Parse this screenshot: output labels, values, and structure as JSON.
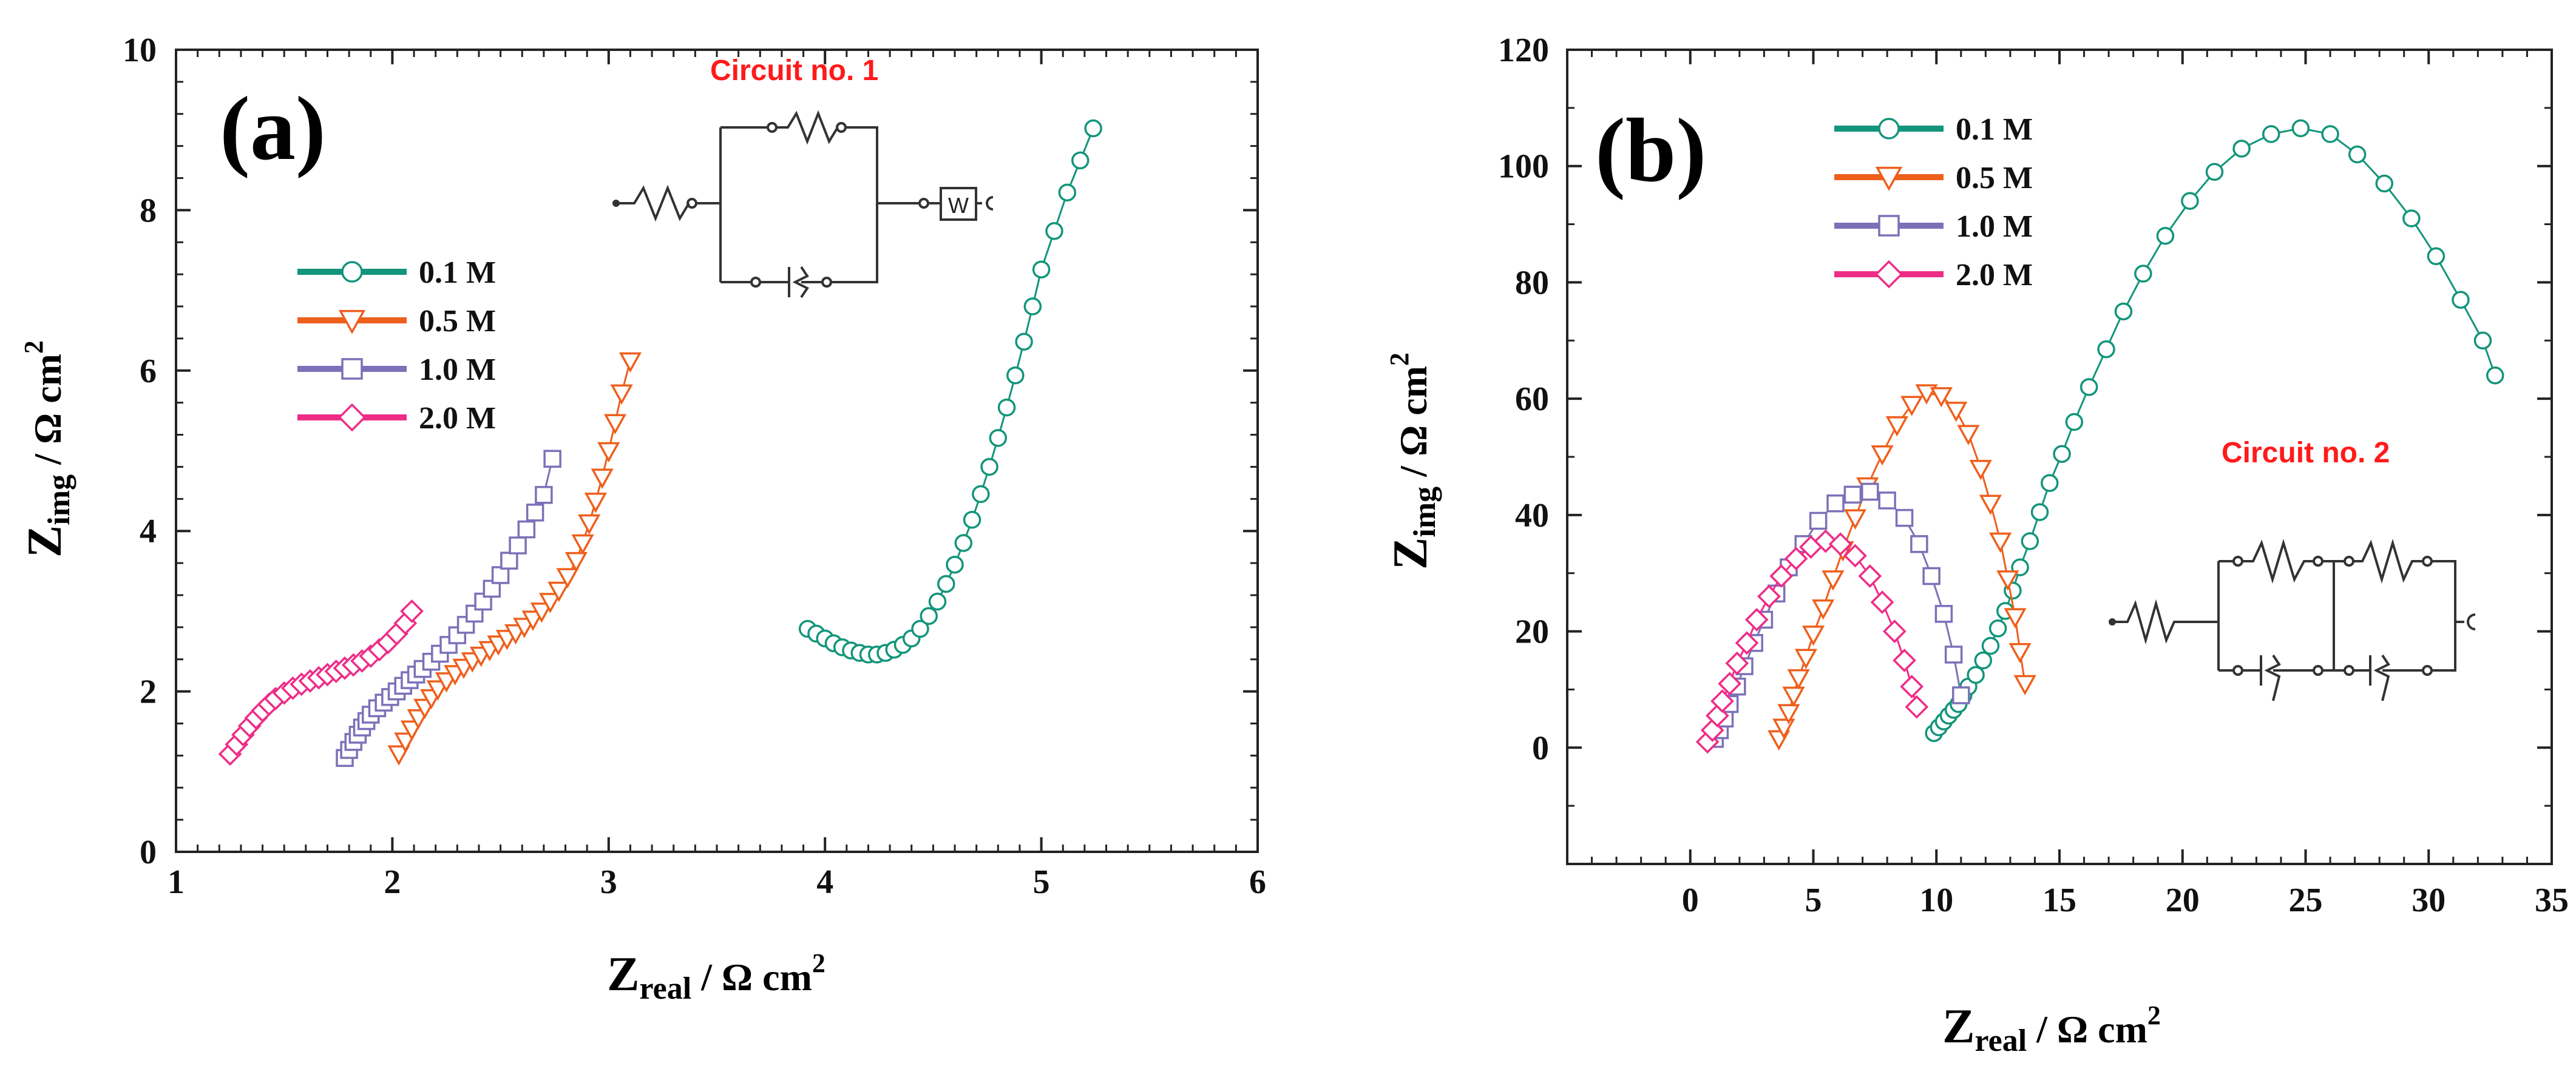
{
  "colors": {
    "series_0.1M": "#12957a",
    "series_0.5M": "#ee5f1c",
    "series_1.0M": "#7b71b8",
    "series_2.0M": "#ee2c87",
    "circuit_label": "#ff1a1a"
  },
  "chart_data": [
    {
      "type": "scatter",
      "panel_label": "(a)",
      "xlabel": {
        "main": "Z",
        "sub": "real",
        "rest": " / Ω cm",
        "sup": "2"
      },
      "ylabel": {
        "main": "Z",
        "sub": "img",
        "rest": " / Ω cm",
        "sup": "2"
      },
      "xlim": [
        1,
        6
      ],
      "ylim": [
        0,
        10
      ],
      "xticks": [
        1,
        2,
        3,
        4,
        5,
        6
      ],
      "xticklabels": [
        "1",
        "2",
        "3",
        "4",
        "5",
        "6"
      ],
      "yticks": [
        0,
        2,
        4,
        6,
        8,
        10
      ],
      "yticklabels": [
        "0",
        "2",
        "4",
        "6",
        "8",
        "10"
      ],
      "circuit_label": "Circuit no. 1",
      "circuit_element": "W",
      "legend": [
        "0.1 M",
        "0.5 M",
        "1.0 M",
        "2.0 M"
      ],
      "series": [
        {
          "name": "0.1 M",
          "marker": "circle",
          "color": "#12957a",
          "x": [
            3.92,
            3.96,
            4.0,
            4.04,
            4.08,
            4.12,
            4.16,
            4.2,
            4.24,
            4.28,
            4.32,
            4.36,
            4.4,
            4.44,
            4.48,
            4.52,
            4.56,
            4.6,
            4.64,
            4.68,
            4.72,
            4.76,
            4.8,
            4.84,
            4.88,
            4.92,
            4.96,
            5.0,
            5.06,
            5.12,
            5.18,
            5.24
          ],
          "y": [
            2.78,
            2.72,
            2.66,
            2.6,
            2.55,
            2.51,
            2.48,
            2.46,
            2.46,
            2.48,
            2.52,
            2.58,
            2.66,
            2.78,
            2.94,
            3.12,
            3.34,
            3.58,
            3.85,
            4.14,
            4.46,
            4.8,
            5.16,
            5.54,
            5.94,
            6.36,
            6.8,
            7.26,
            7.74,
            8.22,
            8.62,
            9.02
          ]
        },
        {
          "name": "0.5 M",
          "marker": "triangle-down",
          "color": "#ee5f1c",
          "x": [
            2.03,
            2.06,
            2.09,
            2.12,
            2.15,
            2.18,
            2.21,
            2.25,
            2.29,
            2.33,
            2.37,
            2.41,
            2.45,
            2.49,
            2.53,
            2.57,
            2.61,
            2.65,
            2.69,
            2.73,
            2.77,
            2.81,
            2.85,
            2.88,
            2.91,
            2.94,
            2.97,
            3.0,
            3.03,
            3.06,
            3.1
          ],
          "y": [
            1.22,
            1.38,
            1.53,
            1.67,
            1.8,
            1.92,
            2.03,
            2.13,
            2.22,
            2.3,
            2.38,
            2.45,
            2.52,
            2.59,
            2.66,
            2.73,
            2.81,
            2.9,
            3.0,
            3.12,
            3.26,
            3.43,
            3.63,
            3.85,
            4.1,
            4.37,
            4.67,
            5.0,
            5.35,
            5.72,
            6.12
          ]
        },
        {
          "name": "1.0 M",
          "marker": "square",
          "color": "#7b71b8",
          "x": [
            1.78,
            1.8,
            1.82,
            1.84,
            1.86,
            1.88,
            1.9,
            1.93,
            1.96,
            1.99,
            2.02,
            2.05,
            2.08,
            2.11,
            2.14,
            2.18,
            2.22,
            2.26,
            2.3,
            2.34,
            2.38,
            2.42,
            2.46,
            2.5,
            2.54,
            2.58,
            2.62,
            2.66,
            2.7,
            2.74
          ],
          "y": [
            1.17,
            1.27,
            1.37,
            1.46,
            1.55,
            1.63,
            1.71,
            1.79,
            1.86,
            1.93,
            2.0,
            2.07,
            2.14,
            2.21,
            2.28,
            2.37,
            2.47,
            2.58,
            2.7,
            2.83,
            2.97,
            3.12,
            3.28,
            3.45,
            3.63,
            3.82,
            4.02,
            4.23,
            4.45,
            4.9
          ]
        },
        {
          "name": "2.0 M",
          "marker": "diamond",
          "color": "#ee2c87",
          "x": [
            1.25,
            1.28,
            1.31,
            1.34,
            1.37,
            1.4,
            1.43,
            1.46,
            1.5,
            1.54,
            1.58,
            1.62,
            1.66,
            1.7,
            1.74,
            1.78,
            1.82,
            1.86,
            1.9,
            1.94,
            1.98,
            2.02,
            2.06,
            2.09
          ],
          "y": [
            1.22,
            1.34,
            1.46,
            1.57,
            1.67,
            1.76,
            1.84,
            1.91,
            1.98,
            2.04,
            2.09,
            2.13,
            2.17,
            2.21,
            2.25,
            2.29,
            2.33,
            2.38,
            2.44,
            2.52,
            2.61,
            2.72,
            2.85,
            3.0
          ]
        }
      ]
    },
    {
      "type": "scatter",
      "panel_label": "(b)",
      "xlabel": {
        "main": "Z",
        "sub": "real",
        "rest": " / Ω cm",
        "sup": "2"
      },
      "ylabel": {
        "main": "Z",
        "sub": "img",
        "rest": " / Ω cm",
        "sup": "2"
      },
      "xlim": [
        -5,
        35
      ],
      "ylim": [
        -20,
        120
      ],
      "xticks": [
        0,
        5,
        10,
        15,
        20,
        25,
        30,
        35
      ],
      "xticklabels": [
        "0",
        "5",
        "10",
        "15",
        "20",
        "25",
        "30",
        "35"
      ],
      "yticks": [
        0,
        20,
        40,
        60,
        80,
        100,
        120
      ],
      "yticklabels": [
        "0",
        "20",
        "40",
        "60",
        "80",
        "100",
        "120"
      ],
      "circuit_label": "Circuit no. 2",
      "legend": [
        "0.1 M",
        "0.5 M",
        "1.0 M",
        "2.0 M"
      ],
      "series": [
        {
          "name": "0.1 M",
          "marker": "circle",
          "color": "#12957a",
          "x": [
            9.9,
            10.1,
            10.3,
            10.5,
            10.7,
            10.9,
            11.1,
            11.3,
            11.6,
            11.9,
            12.2,
            12.5,
            12.8,
            13.1,
            13.4,
            13.8,
            14.2,
            14.6,
            15.1,
            15.6,
            16.2,
            16.9,
            17.6,
            18.4,
            19.3,
            20.3,
            21.3,
            22.4,
            23.6,
            24.8,
            26.0,
            27.1,
            28.2,
            29.3,
            30.3,
            31.3,
            32.2,
            32.7
          ],
          "y": [
            2.5,
            3.5,
            4.5,
            5.5,
            6.5,
            7.5,
            9,
            10.5,
            12.5,
            15,
            17.5,
            20.5,
            23.5,
            27,
            31,
            35.5,
            40.5,
            45.5,
            50.5,
            56,
            62,
            68.5,
            75,
            81.5,
            88,
            94,
            99,
            103,
            105.5,
            106.5,
            105.5,
            102,
            97,
            91,
            84.5,
            77,
            70,
            64
          ]
        },
        {
          "name": "0.5 M",
          "marker": "triangle-down",
          "color": "#ee5f1c",
          "x": [
            3.6,
            3.8,
            4.0,
            4.2,
            4.4,
            4.7,
            5.0,
            5.4,
            5.8,
            6.2,
            6.7,
            7.2,
            7.8,
            8.4,
            9.0,
            9.6,
            10.2,
            10.8,
            11.3,
            11.8,
            12.2,
            12.6,
            12.9,
            13.2,
            13.4,
            13.6
          ],
          "y": [
            1.5,
            3.5,
            6,
            9,
            12,
            15.5,
            19.5,
            24,
            29,
            34,
            39.5,
            45,
            50.5,
            55.5,
            59,
            61,
            60.5,
            58,
            54,
            48,
            42,
            35.5,
            29,
            22.5,
            16.5,
            11
          ]
        },
        {
          "name": "1.0 M",
          "marker": "square",
          "color": "#7b71b8",
          "x": [
            1.0,
            1.2,
            1.4,
            1.6,
            1.9,
            2.2,
            2.6,
            3.0,
            3.5,
            4.0,
            4.6,
            5.2,
            5.9,
            6.6,
            7.3,
            8.0,
            8.7,
            9.3,
            9.8,
            10.3,
            10.7,
            11.0
          ],
          "y": [
            1.5,
            3,
            5,
            7.5,
            10.5,
            14,
            18,
            22,
            26.5,
            31,
            35,
            39,
            42,
            43.5,
            44,
            42.5,
            39.5,
            35,
            29.5,
            23,
            16,
            9
          ]
        },
        {
          "name": "2.0 M",
          "marker": "diamond",
          "color": "#ee2c87",
          "x": [
            0.7,
            0.9,
            1.1,
            1.3,
            1.6,
            1.9,
            2.3,
            2.7,
            3.2,
            3.7,
            4.3,
            4.9,
            5.5,
            6.1,
            6.7,
            7.3,
            7.8,
            8.3,
            8.7,
            9.0,
            9.2
          ],
          "y": [
            1,
            3,
            5.5,
            8,
            11,
            14.5,
            18,
            22,
            26,
            29.5,
            32.5,
            34.5,
            35.5,
            35,
            33,
            29.5,
            25,
            20,
            15,
            10.5,
            7
          ]
        }
      ]
    }
  ]
}
